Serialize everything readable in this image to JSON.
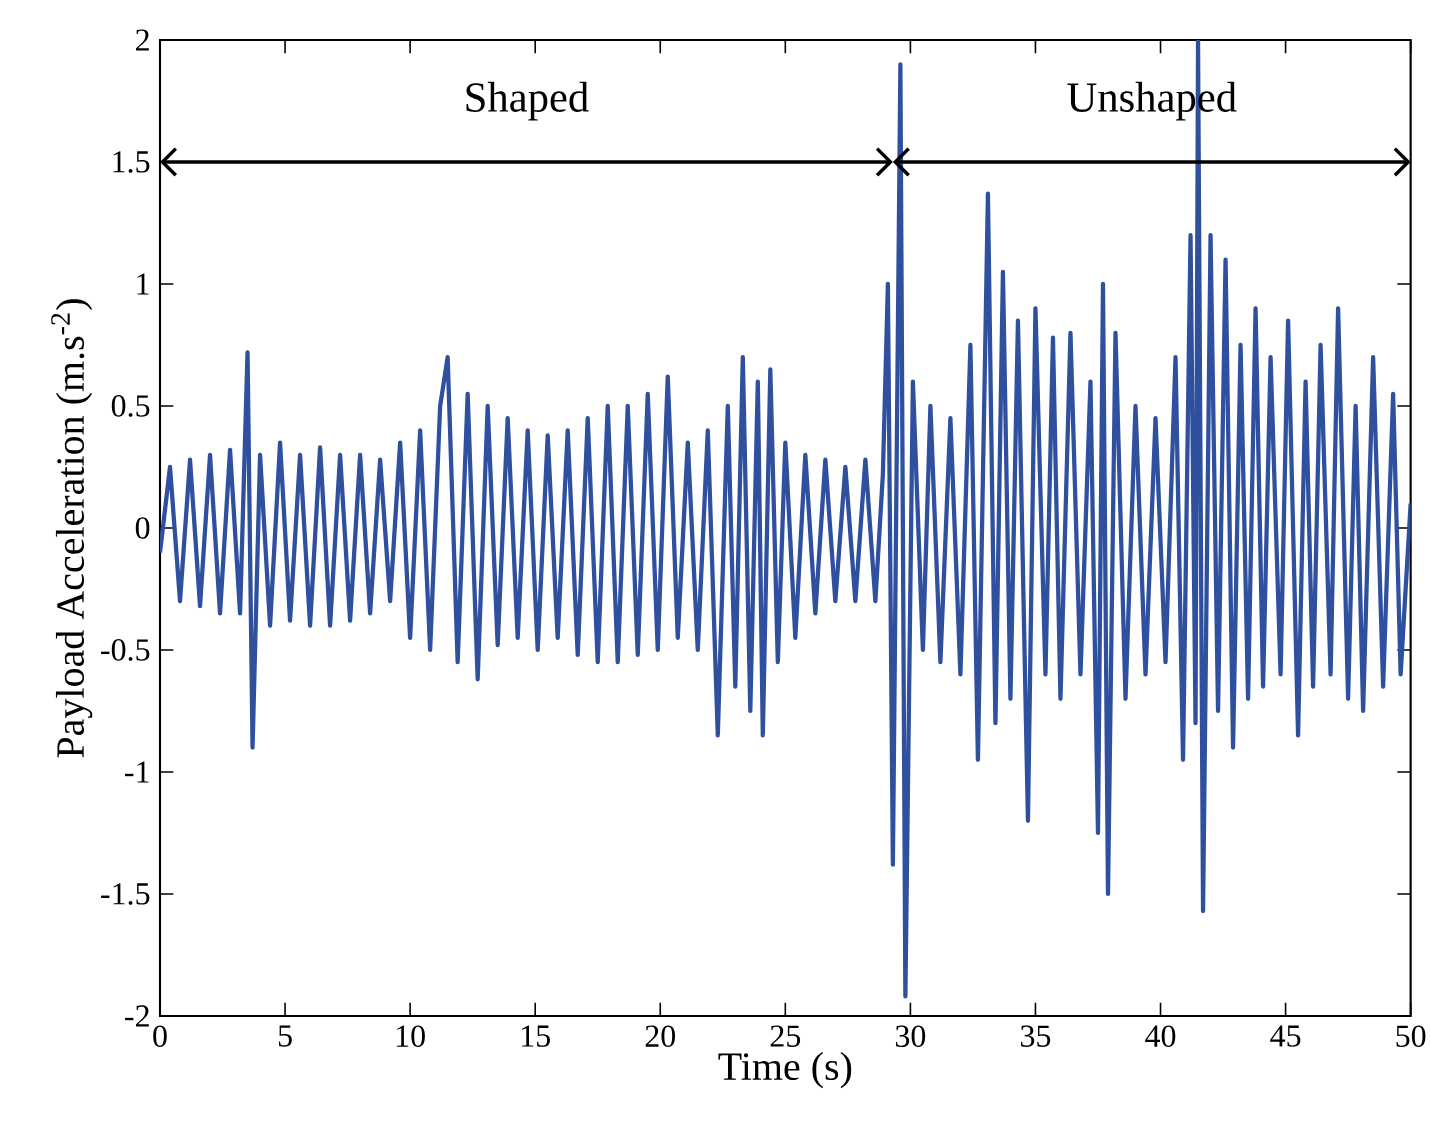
{
  "chart_data": {
    "type": "line",
    "xlabel": "Time (s)",
    "ylabel": "Payload Acceleration (m.s$^{-2}$)",
    "xlim": [
      0,
      50
    ],
    "ylim": [
      -2,
      2
    ],
    "xticks": [
      0,
      5,
      10,
      15,
      20,
      25,
      30,
      35,
      40,
      45,
      50
    ],
    "yticks": [
      -2,
      -1.5,
      -1,
      -0.5,
      0,
      0.5,
      1,
      1.5,
      2
    ],
    "marker": "none",
    "line_style": "solid",
    "annotations": [
      "Shaped",
      "Unshaped"
    ],
    "series": [
      {
        "color": "#2f4f9f",
        "x": [
          0,
          0.4,
          0.8,
          1.2,
          1.6,
          2.0,
          2.4,
          2.8,
          3.2,
          3.5,
          3.7,
          4.0,
          4.4,
          4.8,
          5.2,
          5.6,
          6.0,
          6.4,
          6.8,
          7.2,
          7.6,
          8.0,
          8.4,
          8.8,
          9.2,
          9.6,
          10.0,
          10.4,
          10.8,
          11.2,
          11.5,
          11.9,
          12.3,
          12.7,
          13.1,
          13.5,
          13.9,
          14.3,
          14.7,
          15.1,
          15.5,
          15.9,
          16.3,
          16.7,
          17.1,
          17.5,
          17.9,
          18.3,
          18.7,
          19.1,
          19.5,
          19.9,
          20.3,
          20.7,
          21.1,
          21.5,
          21.9,
          22.3,
          22.7,
          23.0,
          23.3,
          23.6,
          23.9,
          24.1,
          24.4,
          24.7,
          25.0,
          25.4,
          25.8,
          26.2,
          26.6,
          27.0,
          27.4,
          27.8,
          28.2,
          28.6,
          28.9,
          29.1,
          29.3,
          29.6,
          29.8,
          30.1,
          30.5,
          30.8,
          31.2,
          31.6,
          32.0,
          32.4,
          32.7,
          33.1,
          33.4,
          33.7,
          34.0,
          34.3,
          34.7,
          35.0,
          35.4,
          35.7,
          36.0,
          36.4,
          36.8,
          37.2,
          37.5,
          37.7,
          37.9,
          38.2,
          38.6,
          39.0,
          39.4,
          39.8,
          40.2,
          40.6,
          40.9,
          41.2,
          41.4,
          41.5,
          41.7,
          42.0,
          42.3,
          42.6,
          42.9,
          43.2,
          43.5,
          43.8,
          44.1,
          44.4,
          44.8,
          45.1,
          45.5,
          45.8,
          46.1,
          46.4,
          46.8,
          47.1,
          47.5,
          47.8,
          48.1,
          48.5,
          48.9,
          49.3,
          49.6,
          50
        ],
        "values": [
          -0.1,
          0.25,
          -0.3,
          0.28,
          -0.32,
          0.3,
          -0.35,
          0.32,
          -0.35,
          0.72,
          -0.9,
          0.3,
          -0.4,
          0.35,
          -0.38,
          0.3,
          -0.4,
          0.33,
          -0.4,
          0.3,
          -0.38,
          0.3,
          -0.35,
          0.28,
          -0.3,
          0.35,
          -0.45,
          0.4,
          -0.5,
          0.5,
          0.7,
          -0.55,
          0.55,
          -0.62,
          0.5,
          -0.48,
          0.45,
          -0.45,
          0.4,
          -0.5,
          0.38,
          -0.45,
          0.4,
          -0.52,
          0.45,
          -0.55,
          0.5,
          -0.55,
          0.5,
          -0.52,
          0.55,
          -0.5,
          0.62,
          -0.45,
          0.35,
          -0.5,
          0.4,
          -0.85,
          0.5,
          -0.65,
          0.7,
          -0.75,
          0.6,
          -0.85,
          0.65,
          -0.55,
          0.35,
          -0.45,
          0.3,
          -0.35,
          0.28,
          -0.3,
          0.25,
          -0.3,
          0.28,
          -0.3,
          0.22,
          1.0,
          -1.38,
          1.9,
          -1.92,
          0.6,
          -0.5,
          0.5,
          -0.55,
          0.45,
          -0.6,
          0.75,
          -0.95,
          1.37,
          -0.8,
          1.05,
          -0.7,
          0.85,
          -1.2,
          0.9,
          -0.6,
          0.78,
          -0.7,
          0.8,
          -0.6,
          0.6,
          -1.25,
          1.0,
          -1.5,
          0.8,
          -0.7,
          0.5,
          -0.6,
          0.45,
          -0.55,
          0.7,
          -0.95,
          1.2,
          -0.8,
          2.0,
          -1.57,
          1.2,
          -0.75,
          1.1,
          -0.9,
          0.75,
          -0.7,
          0.9,
          -0.65,
          0.7,
          -0.6,
          0.85,
          -0.85,
          0.6,
          -0.65,
          0.75,
          -0.6,
          0.9,
          -0.7,
          0.5,
          -0.75,
          0.7,
          -0.65,
          0.55,
          -0.6,
          0.1
        ]
      }
    ]
  }
}
